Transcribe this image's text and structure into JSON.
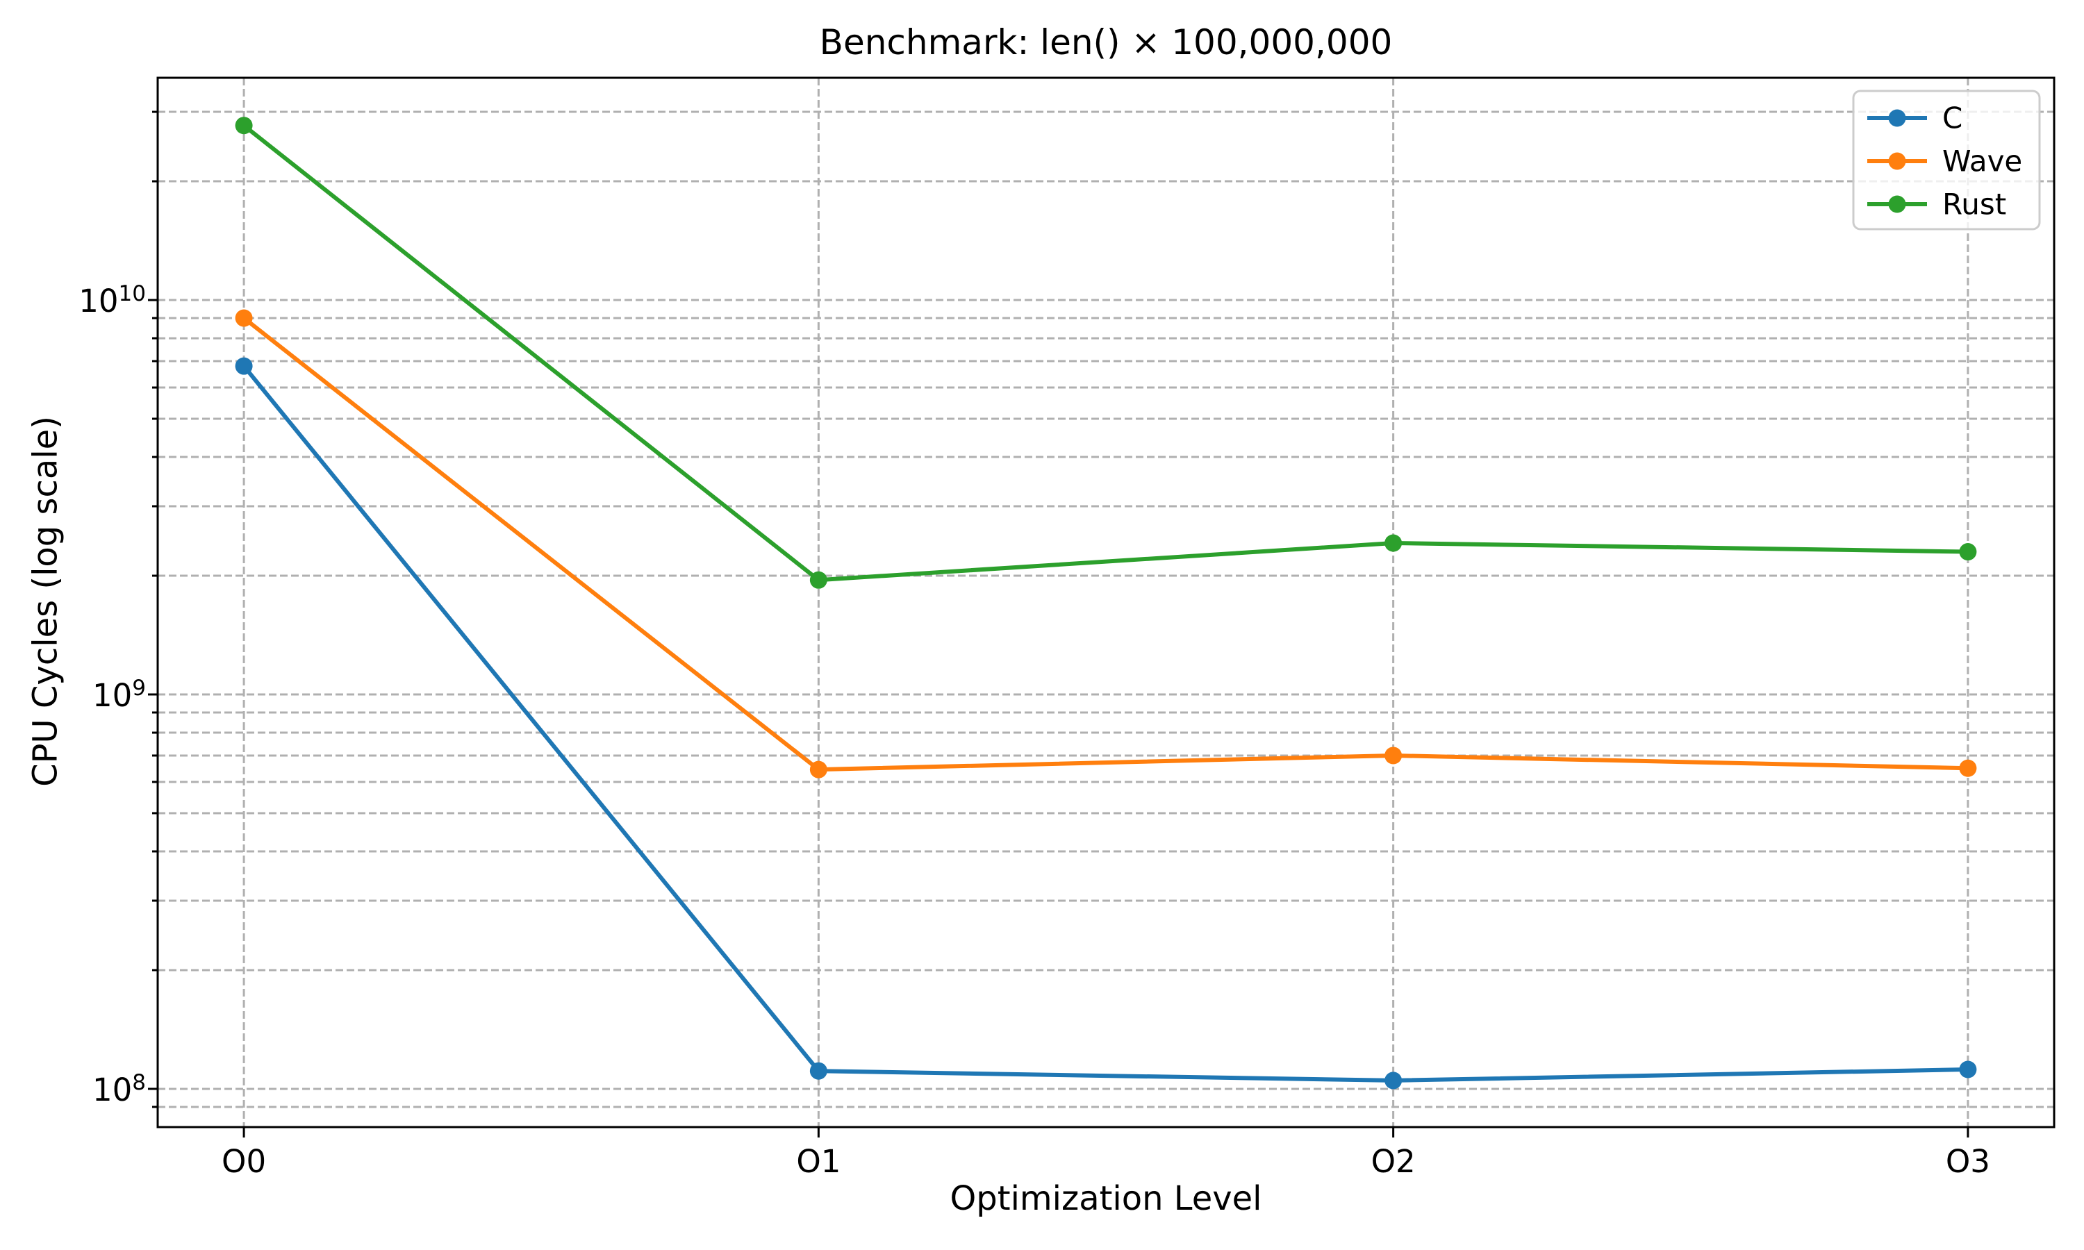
{
  "chart_data": {
    "type": "line",
    "title": "Benchmark: len() × 100,000,000",
    "xlabel": "Optimization Level",
    "ylabel": "CPU Cycles (log scale)",
    "x_categories": [
      "O0",
      "O1",
      "O2",
      "O3"
    ],
    "series": [
      {
        "name": "C",
        "color": "#1f77b4",
        "values": [
          6800000000,
          111000000,
          105000000,
          112000000
        ]
      },
      {
        "name": "Wave",
        "color": "#ff7f0e",
        "values": [
          9000000000,
          645000000,
          700000000,
          650000000
        ]
      },
      {
        "name": "Rust",
        "color": "#2ca02c",
        "values": [
          27700000000,
          1950000000,
          2420000000,
          2300000000
        ]
      }
    ],
    "yscale": "log",
    "ylim": [
      80000000,
      36600000000
    ],
    "y_ticks": [
      {
        "value": 100000000,
        "label": "10^8"
      },
      {
        "value": 1000000000,
        "label": "10^9"
      },
      {
        "value": 10000000000,
        "label": "10^10"
      }
    ],
    "grid": {
      "which": "both",
      "style": "dashed",
      "color": "#b0b0b0"
    },
    "legend": {
      "position": "upper right",
      "border_color": "#cccccc",
      "background": "#ffffff"
    },
    "axis_color": "#000000",
    "background": "#ffffff"
  }
}
